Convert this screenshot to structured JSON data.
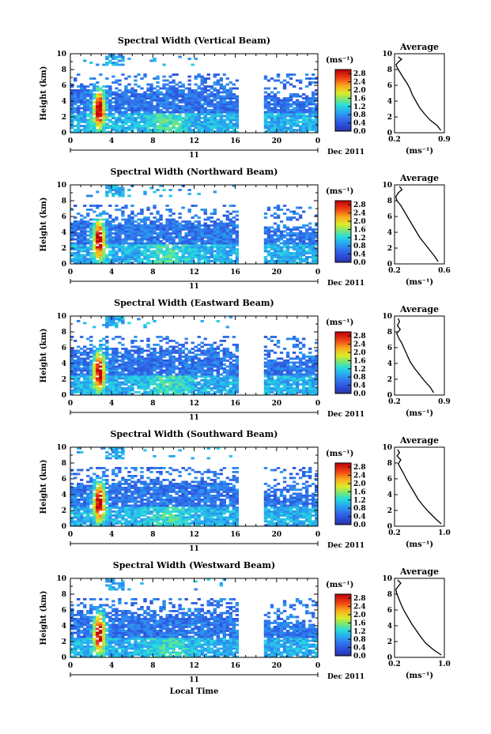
{
  "chart_data": [
    {
      "type": "heatmap",
      "title": "Spectral Width (Vertical Beam)",
      "ylabel": "Height (km)",
      "x_ticks": [
        "0",
        "4",
        "8",
        "12",
        "16",
        "20",
        "0"
      ],
      "y_ticks": [
        "0",
        "2",
        "4",
        "6",
        "8",
        "10"
      ],
      "xlim": [
        0,
        24
      ],
      "ylim": [
        0,
        10
      ],
      "day_label": "11",
      "date_label": "Dec 2011",
      "colorbar": {
        "unit": "(ms⁻¹)",
        "ticks": [
          "0.0",
          "0.4",
          "0.8",
          "1.2",
          "1.6",
          "2.0",
          "2.4",
          "2.8"
        ],
        "range": [
          0,
          3.0
        ]
      },
      "gaps_hours": [
        [
          16.2,
          18.8
        ]
      ],
      "profile": {
        "title": "Average",
        "xlabel": "(ms⁻¹)",
        "x_ticks": [
          "0.2",
          "0.9"
        ],
        "y_ticks": [
          "0",
          "2",
          "4",
          "6",
          "8",
          "10"
        ],
        "xlim": [
          0.2,
          0.9
        ],
        "ylim": [
          0,
          10
        ],
        "x": [
          0.85,
          0.8,
          0.7,
          0.62,
          0.55,
          0.5,
          0.45,
          0.42,
          0.38,
          0.32,
          0.28,
          0.24,
          0.22,
          0.26,
          0.3,
          0.25
        ],
        "y": [
          0.3,
          0.9,
          1.6,
          2.4,
          3.2,
          4.0,
          4.8,
          5.5,
          6.2,
          7.0,
          7.6,
          8.2,
          8.6,
          9.0,
          9.3,
          9.6
        ]
      }
    },
    {
      "type": "heatmap",
      "title": "Spectral Width (Northward Beam)",
      "ylabel": "Height (km)",
      "x_ticks": [
        "0",
        "4",
        "8",
        "12",
        "16",
        "20",
        "0"
      ],
      "y_ticks": [
        "0",
        "2",
        "4",
        "6",
        "8",
        "10"
      ],
      "xlim": [
        0,
        24
      ],
      "ylim": [
        0,
        10
      ],
      "day_label": "11",
      "date_label": "Dec 2011",
      "colorbar": {
        "unit": "(ms⁻¹)",
        "ticks": [
          "0.0",
          "0.4",
          "0.8",
          "1.2",
          "1.6",
          "2.0",
          "2.4",
          "2.8"
        ],
        "range": [
          0,
          3.0
        ]
      },
      "gaps_hours": [
        [
          16.2,
          18.8
        ]
      ],
      "profile": {
        "title": "Average",
        "xlabel": "(ms⁻¹)",
        "x_ticks": [
          "0.2",
          "0.6"
        ],
        "y_ticks": [
          "0",
          "2",
          "4",
          "6",
          "8",
          "10"
        ],
        "xlim": [
          0.2,
          0.6
        ],
        "ylim": [
          0,
          10
        ],
        "x": [
          0.55,
          0.52,
          0.48,
          0.44,
          0.4,
          0.37,
          0.34,
          0.31,
          0.28,
          0.25,
          0.22,
          0.21,
          0.23,
          0.26,
          0.24
        ],
        "y": [
          0.3,
          1.0,
          1.8,
          2.6,
          3.4,
          4.2,
          5.0,
          5.8,
          6.6,
          7.4,
          8.0,
          8.5,
          9.0,
          9.4,
          9.8
        ]
      }
    },
    {
      "type": "heatmap",
      "title": "Spectral Width (Eastward Beam)",
      "ylabel": "Height (km)",
      "x_ticks": [
        "0",
        "4",
        "8",
        "12",
        "16",
        "20",
        "0"
      ],
      "y_ticks": [
        "0",
        "2",
        "4",
        "6",
        "8",
        "10"
      ],
      "xlim": [
        0,
        24
      ],
      "ylim": [
        0,
        10
      ],
      "day_label": "11",
      "date_label": "Dec 2011",
      "colorbar": {
        "unit": "(ms⁻¹)",
        "ticks": [
          "0.0",
          "0.4",
          "0.8",
          "1.2",
          "1.6",
          "2.0",
          "2.4",
          "2.8"
        ],
        "range": [
          0,
          3.0
        ]
      },
      "gaps_hours": [
        [
          16.2,
          18.8
        ]
      ],
      "profile": {
        "title": "Average",
        "xlabel": "(ms⁻¹)",
        "x_ticks": [
          "0.2",
          "0.9"
        ],
        "y_ticks": [
          "0",
          "2",
          "4",
          "6",
          "8",
          "10"
        ],
        "xlim": [
          0.2,
          0.9
        ],
        "ylim": [
          0,
          10
        ],
        "x": [
          0.75,
          0.7,
          0.62,
          0.55,
          0.48,
          0.42,
          0.38,
          0.34,
          0.3,
          0.26,
          0.23,
          0.28,
          0.24,
          0.27,
          0.25
        ],
        "y": [
          0.3,
          1.0,
          1.8,
          2.6,
          3.4,
          4.2,
          5.0,
          5.8,
          6.6,
          7.2,
          7.8,
          8.3,
          8.8,
          9.3,
          9.7
        ]
      }
    },
    {
      "type": "heatmap",
      "title": "Spectral Width (Southward Beam)",
      "ylabel": "Height (km)",
      "x_ticks": [
        "0",
        "4",
        "8",
        "12",
        "16",
        "20",
        "0"
      ],
      "y_ticks": [
        "0",
        "2",
        "4",
        "6",
        "8",
        "10"
      ],
      "xlim": [
        0,
        24
      ],
      "ylim": [
        0,
        10
      ],
      "day_label": "11",
      "date_label": "Dec 2011",
      "colorbar": {
        "unit": "(ms⁻¹)",
        "ticks": [
          "0.0",
          "0.4",
          "0.8",
          "1.2",
          "1.6",
          "2.0",
          "2.4",
          "2.8"
        ],
        "range": [
          0,
          3.0
        ]
      },
      "gaps_hours": [
        [
          16.2,
          18.8
        ]
      ],
      "profile": {
        "title": "Average",
        "xlabel": "(ms⁻¹)",
        "x_ticks": [
          "0.2",
          "1.0"
        ],
        "y_ticks": [
          "0",
          "2",
          "4",
          "6",
          "8",
          "10"
        ],
        "xlim": [
          0.2,
          1.0
        ],
        "ylim": [
          0,
          10
        ],
        "x": [
          0.95,
          0.85,
          0.75,
          0.66,
          0.58,
          0.52,
          0.46,
          0.4,
          0.35,
          0.3,
          0.26,
          0.3,
          0.24,
          0.28,
          0.25
        ],
        "y": [
          0.3,
          1.0,
          1.8,
          2.6,
          3.4,
          4.2,
          5.0,
          5.8,
          6.6,
          7.3,
          7.9,
          8.4,
          8.9,
          9.3,
          9.7
        ]
      }
    },
    {
      "type": "heatmap",
      "title": "Spectral Width (Westward Beam)",
      "ylabel": "Height (km)",
      "xlabel": "Local Time",
      "x_ticks": [
        "0",
        "4",
        "8",
        "12",
        "16",
        "20",
        "0"
      ],
      "y_ticks": [
        "0",
        "2",
        "4",
        "6",
        "8",
        "10"
      ],
      "xlim": [
        0,
        24
      ],
      "ylim": [
        0,
        10
      ],
      "day_label": "11",
      "date_label": "Dec 2011",
      "colorbar": {
        "unit": "(ms⁻¹)",
        "ticks": [
          "0.0",
          "0.4",
          "0.8",
          "1.2",
          "1.6",
          "2.0",
          "2.4",
          "2.8"
        ],
        "range": [
          0,
          3.0
        ]
      },
      "gaps_hours": [
        [
          16.2,
          18.8
        ]
      ],
      "profile": {
        "title": "Average",
        "xlabel": "(ms⁻¹)",
        "x_ticks": [
          "0.2",
          "1.0"
        ],
        "y_ticks": [
          "0",
          "2",
          "4",
          "6",
          "8",
          "10"
        ],
        "xlim": [
          0.2,
          1.0
        ],
        "ylim": [
          0,
          10
        ],
        "x": [
          0.95,
          0.82,
          0.7,
          0.62,
          0.55,
          0.48,
          0.42,
          0.36,
          0.31,
          0.27,
          0.24,
          0.22,
          0.26,
          0.3,
          0.25
        ],
        "y": [
          0.3,
          1.0,
          1.8,
          2.6,
          3.4,
          4.2,
          5.0,
          5.8,
          6.6,
          7.4,
          8.0,
          8.6,
          9.0,
          9.4,
          9.8
        ]
      }
    }
  ]
}
